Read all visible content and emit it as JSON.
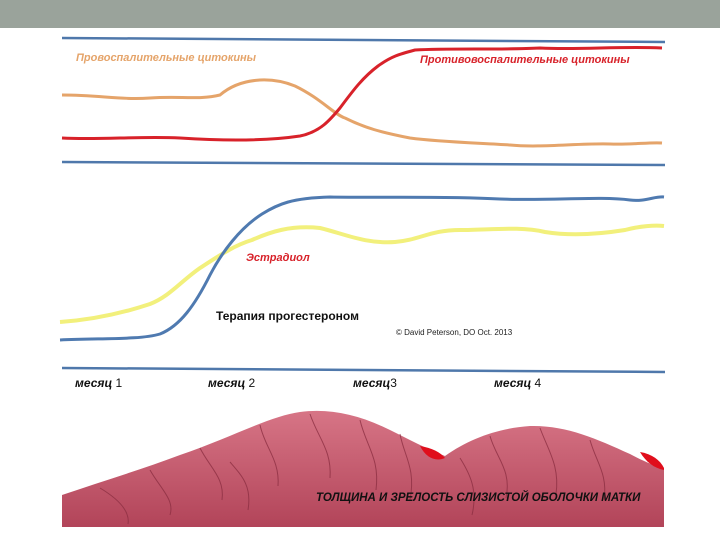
{
  "colors": {
    "topbar": "#9aa39b",
    "proinflammatory": "#e5a46a",
    "anti_inflammatory": "#d8222a",
    "progesterone": "#4f7ab0",
    "estradiol": "#f2f07c",
    "divider": "#4f78ab",
    "tissue": "#c4566a"
  },
  "labels": {
    "proinflammatory": "Провоспалительные цитокины",
    "anti_inflammatory": "Противовоспалительные цитокины",
    "estradiol": "Эстрадиол",
    "progesterone_therapy": "Терапия прогестероном",
    "copyright": "© David Peterson, DO Oct. 2013",
    "bottom_caption": "ТОЛЩИНА И ЗРЕЛОСТЬ СЛИЗИСТОЙ ОБОЛОЧКИ МАТКИ"
  },
  "months": [
    {
      "word": "месяц",
      "num": "1"
    },
    {
      "word": "месяц",
      "num": "2"
    },
    {
      "word": "месяц",
      "num": "3"
    },
    {
      "word": "месяц",
      "num": "4"
    }
  ]
}
